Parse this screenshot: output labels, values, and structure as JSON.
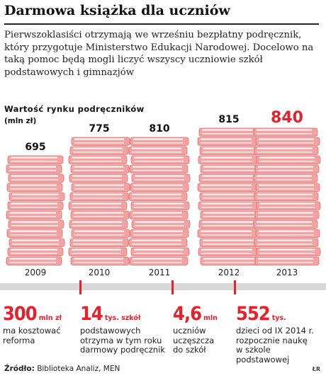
{
  "headline": "Darmowa książka dla uczniów",
  "lead": "Pierwszoklasiści otrzymają we wrześniu bezpłatny podręcznik, który przygotuje Ministerstwo Edukacji Narodowej. Docelowo na taką pomoc będą mogli liczyć wszyscy uczniowie szkół podstawowych i gimnazjów",
  "chart_data": {
    "type": "bar",
    "title": "Wartość rynku podręczników",
    "unit": "(mln zł)",
    "categories": [
      "2009",
      "2010",
      "2011",
      "2012",
      "2013"
    ],
    "values": [
      695,
      775,
      810,
      815,
      840
    ],
    "ylim": [
      0,
      840
    ],
    "grid": false,
    "highlight": "2013",
    "colors": {
      "book": "#f4a3a3",
      "book_edge": "#e36a6a",
      "pages": "#ffffff",
      "label": "#111111",
      "highlight_label": "#e8202b"
    }
  },
  "facts": [
    {
      "value": "300",
      "unit": "mln zł",
      "text": [
        "ma kosztować",
        "reforma"
      ]
    },
    {
      "value": "14",
      "unit": "tys. szkół",
      "text": [
        "podstawowych",
        "otrzyma w tym roku",
        "darmowy podręcznik"
      ]
    },
    {
      "value": "4,6",
      "unit": "mln",
      "text": [
        "uczniów",
        "uczęszcza",
        "do szkół"
      ]
    },
    {
      "value": "552",
      "unit": "tys.",
      "text": [
        "dzieci od IX 2014 r.",
        "rozpocznie naukę",
        "w szkole podstawowej"
      ]
    }
  ],
  "source": {
    "label": "Źródło:",
    "text": "Biblioteka Analiz, MEN"
  },
  "credit": "ŁR",
  "colors": {
    "accent": "#e8202b",
    "divider": "#d8d8d8"
  }
}
